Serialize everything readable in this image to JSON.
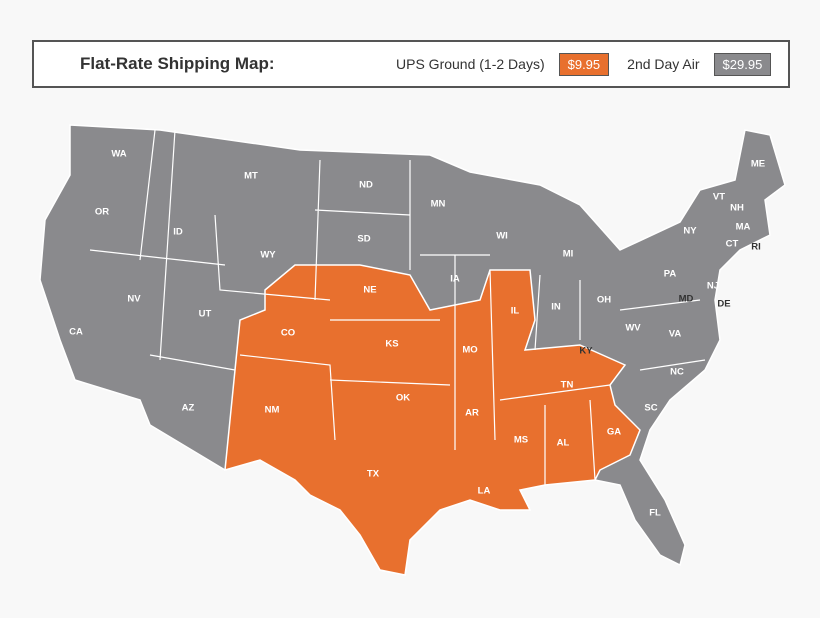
{
  "header": {
    "title": "Flat-Rate Shipping Map:",
    "legend": [
      {
        "label": "UPS Ground (1-2 Days)",
        "price": "$9.95",
        "color": "#e8702e"
      },
      {
        "label": "2nd Day Air",
        "price": "$29.95",
        "color": "#8a8a8d"
      }
    ]
  },
  "states": [
    "WA",
    "OR",
    "CA",
    "ID",
    "NV",
    "MT",
    "WY",
    "UT",
    "AZ",
    "ND",
    "SD",
    "NE",
    "CO",
    "NM",
    "KS",
    "OK",
    "TX",
    "MN",
    "IA",
    "MO",
    "AR",
    "LA",
    "WI",
    "IL",
    "MS",
    "MI",
    "IN",
    "KY",
    "TN",
    "AL",
    "OH",
    "GA",
    "FL",
    "WV",
    "VA",
    "NC",
    "SC",
    "PA",
    "NY",
    "MD",
    "DE",
    "NJ",
    "VT",
    "NH",
    "ME",
    "MA",
    "CT",
    "RI"
  ]
}
